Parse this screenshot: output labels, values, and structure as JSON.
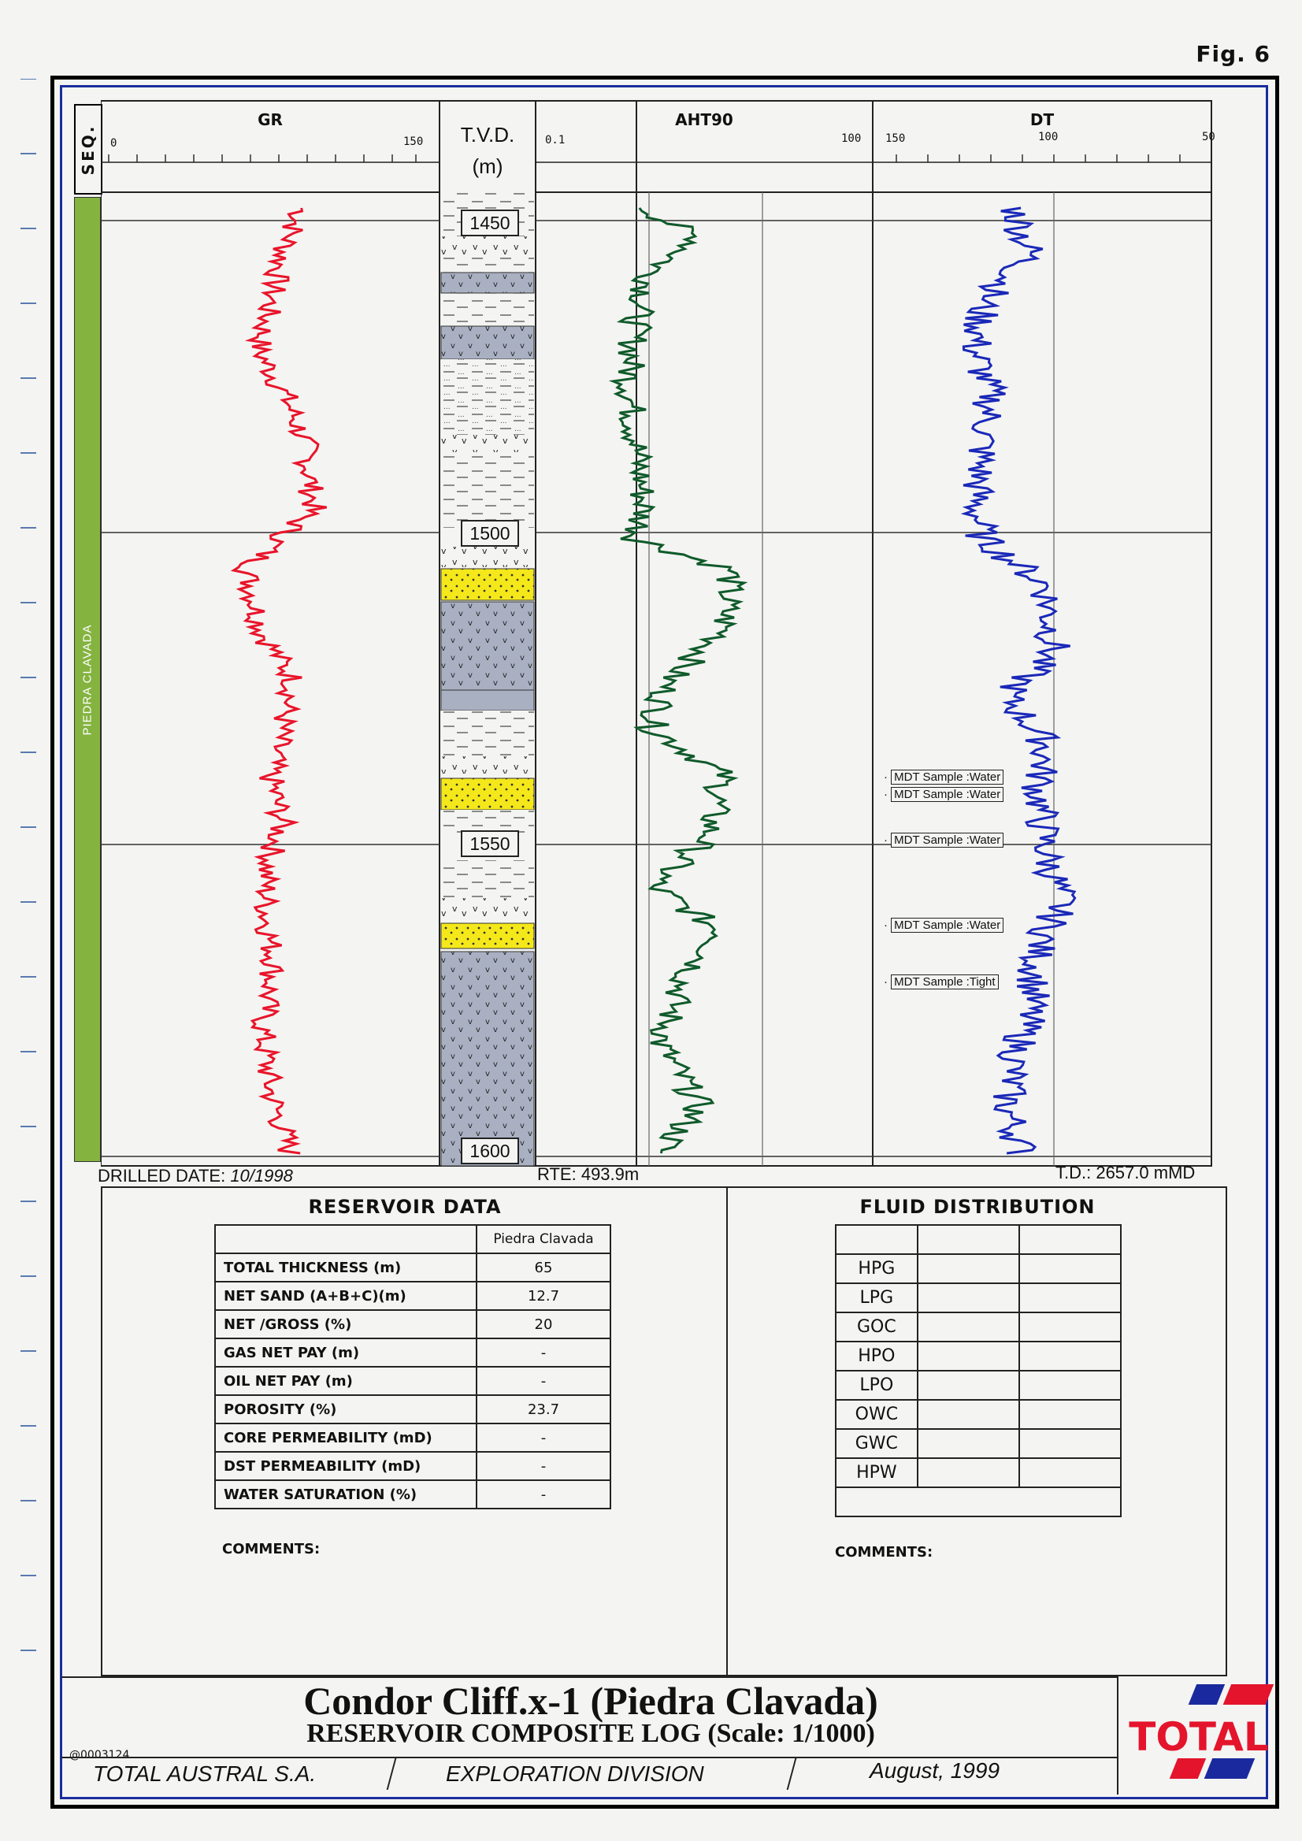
{
  "figure_label": "Fig. 6",
  "tracks": {
    "seq": {
      "label": "SEQ.",
      "unit_label": "PIEDRA CLAVADA"
    },
    "gr": {
      "label": "GR",
      "min": "0",
      "max": "150"
    },
    "tvd": {
      "label": "T.V.D.",
      "unit": "(m)",
      "depths": [
        "1450",
        "1500",
        "1550",
        "1600"
      ]
    },
    "aht90": {
      "label": "AHT90",
      "min": "0.1",
      "max": "100"
    },
    "dt": {
      "label": "DT",
      "min": "150",
      "mid": "100",
      "max": "50"
    }
  },
  "mdt_samples": [
    {
      "text": "MDT Sample :Water"
    },
    {
      "text": "MDT Sample :Water"
    },
    {
      "text": "MDT Sample :Water"
    },
    {
      "text": "MDT Sample :Water"
    },
    {
      "text": "MDT Sample :Tight"
    }
  ],
  "info_line": {
    "drilled_label": "DRILLED DATE:",
    "drilled_value": "10/1998",
    "rte": "RTE: 493.9m",
    "td": "T.D.: 2657.0 mMD"
  },
  "reservoir_data": {
    "title": "RESERVOIR DATA",
    "column_header": "Piedra Clavada",
    "rows": [
      {
        "label": "TOTAL THICKNESS (m)",
        "value": "65"
      },
      {
        "label": "NET SAND (A+B+C)(m)",
        "value": "12.7"
      },
      {
        "label": "NET /GROSS (%)",
        "value": "20"
      },
      {
        "label": "GAS NET PAY (m)",
        "value": "-"
      },
      {
        "label": "OIL NET PAY (m)",
        "value": "-"
      },
      {
        "label": "POROSITY (%)",
        "value": "23.7"
      },
      {
        "label": "CORE PERMEABILITY (mD)",
        "value": "-"
      },
      {
        "label": "DST PERMEABILITY (mD)",
        "value": "-"
      },
      {
        "label": "WATER SATURATION (%)",
        "value": "-"
      }
    ],
    "comments": "COMMENTS:"
  },
  "fluid_distribution": {
    "title": "FLUID DISTRIBUTION",
    "rows": [
      "HPG",
      "LPG",
      "GOC",
      "HPO",
      "LPO",
      "OWC",
      "GWC",
      "HPW"
    ],
    "comments": "COMMENTS:"
  },
  "title_block": {
    "title": "Condor Cliff.x-1 (Piedra Clavada)",
    "subtitle": "RESERVOIR COMPOSITE LOG (Scale: 1/1000)",
    "doc_id": "@0003124",
    "company": "TOTAL AUSTRAL S.A.",
    "division": "EXPLORATION DIVISION",
    "date": "August, 1999",
    "logo_text": "TOTAL"
  },
  "colors": {
    "gr_curve": "#e8142a",
    "aht90_curve": "#0f5a2a",
    "dt_curve": "#1a28b8",
    "sequence_bar": "#84b340",
    "sand_fill": "#f5e81a",
    "tuff_fill": "#a9b0c2",
    "frame_blue": "#1a2d9c",
    "logo_red": "#e4142c",
    "logo_blue": "#1a2a9e"
  }
}
